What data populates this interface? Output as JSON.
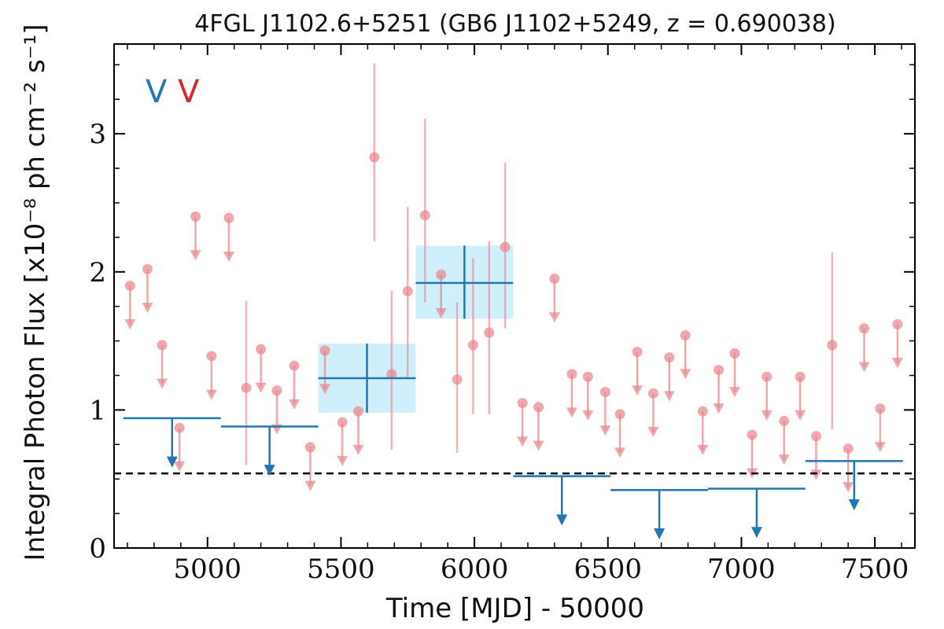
{
  "chart_data": {
    "type": "scatter",
    "title": "4FGL J1102.6+5251 (GB6 J1102+5249, z = 0.690038)",
    "xlabel": "Time [MJD] - 50000",
    "ylabel": "Integral Photon Flux [x10⁻⁸ ph cm⁻² s⁻¹]",
    "xlim": [
      4650,
      7650
    ],
    "ylim": [
      0,
      3.65
    ],
    "xticks": [
      5000,
      5500,
      6000,
      6500,
      7000,
      7500
    ],
    "yticks": [
      0,
      1,
      2,
      3
    ],
    "grid": false,
    "legend": {
      "position": "top-left",
      "entries": [
        {
          "label": "V",
          "color": "#1f77b4"
        },
        {
          "label": "V",
          "color": "#d62728"
        }
      ]
    },
    "reference_line": {
      "y": 0.54,
      "style": "dashed",
      "color": "#000000"
    },
    "series": [
      {
        "color": "#e8838a",
        "points": [
          {
            "x": 4710,
            "y": 1.9,
            "ul": true
          },
          {
            "x": 4775,
            "y": 2.02,
            "ul": true
          },
          {
            "x": 4830,
            "y": 1.47,
            "ul": true
          },
          {
            "x": 4895,
            "y": 0.87,
            "ul": true
          },
          {
            "x": 4955,
            "y": 2.4,
            "ul": true
          },
          {
            "x": 5015,
            "y": 1.39,
            "ul": true
          },
          {
            "x": 5080,
            "y": 2.39,
            "ul": true
          },
          {
            "x": 5145,
            "y": 1.16,
            "ylo": 0.6,
            "yhi": 1.79
          },
          {
            "x": 5200,
            "y": 1.44,
            "ul": true
          },
          {
            "x": 5260,
            "y": 1.14,
            "ul": true
          },
          {
            "x": 5325,
            "y": 1.32,
            "ul": true
          },
          {
            "x": 5385,
            "y": 0.73,
            "ul": true
          },
          {
            "x": 5440,
            "y": 1.43,
            "ul": true
          },
          {
            "x": 5505,
            "y": 0.91,
            "ul": true
          },
          {
            "x": 5565,
            "y": 0.99,
            "ul": true
          },
          {
            "x": 5625,
            "y": 2.83,
            "ylo": 2.22,
            "yhi": 3.51
          },
          {
            "x": 5690,
            "y": 1.26,
            "ylo": 0.71,
            "yhi": 1.86
          },
          {
            "x": 5750,
            "y": 1.86,
            "ylo": 1.24,
            "yhi": 2.47
          },
          {
            "x": 5815,
            "y": 2.41,
            "ylo": 1.78,
            "yhi": 3.11
          },
          {
            "x": 5875,
            "y": 1.98,
            "ul": true
          },
          {
            "x": 5935,
            "y": 1.22,
            "ylo": 0.69,
            "yhi": 1.78
          },
          {
            "x": 5995,
            "y": 1.47,
            "ylo": 0.97,
            "yhi": 2.1
          },
          {
            "x": 6055,
            "y": 1.56,
            "ylo": 0.97,
            "yhi": 2.22
          },
          {
            "x": 6115,
            "y": 2.18,
            "ylo": 1.59,
            "yhi": 2.79
          },
          {
            "x": 6180,
            "y": 1.05,
            "ul": true
          },
          {
            "x": 6240,
            "y": 1.02,
            "ul": true
          },
          {
            "x": 6300,
            "y": 1.95,
            "ul": true
          },
          {
            "x": 6365,
            "y": 1.26,
            "ul": true
          },
          {
            "x": 6425,
            "y": 1.24,
            "ul": true
          },
          {
            "x": 6490,
            "y": 1.13,
            "ul": true
          },
          {
            "x": 6545,
            "y": 0.97,
            "ul": true
          },
          {
            "x": 6610,
            "y": 1.42,
            "ul": true
          },
          {
            "x": 6670,
            "y": 1.12,
            "ul": true
          },
          {
            "x": 6730,
            "y": 1.38,
            "ul": true
          },
          {
            "x": 6790,
            "y": 1.54,
            "ul": true
          },
          {
            "x": 6855,
            "y": 0.99,
            "ul": true
          },
          {
            "x": 6915,
            "y": 1.29,
            "ul": true
          },
          {
            "x": 6975,
            "y": 1.41,
            "ul": true
          },
          {
            "x": 7040,
            "y": 0.82,
            "ul": true
          },
          {
            "x": 7095,
            "y": 1.24,
            "ul": true
          },
          {
            "x": 7160,
            "y": 0.92,
            "ul": true
          },
          {
            "x": 7220,
            "y": 1.24,
            "ul": true
          },
          {
            "x": 7280,
            "y": 0.81,
            "ul": true
          },
          {
            "x": 7340,
            "y": 1.47,
            "ylo": 0.86,
            "yhi": 2.14
          },
          {
            "x": 7400,
            "y": 0.72,
            "ul": true
          },
          {
            "x": 7460,
            "y": 1.59,
            "ul": true
          },
          {
            "x": 7520,
            "y": 1.01,
            "ul": true
          },
          {
            "x": 7585,
            "y": 1.62,
            "ul": true
          }
        ]
      },
      {
        "color": "#1f77b4",
        "bins": [
          {
            "x0": 4685,
            "x1": 5050,
            "y": 0.94,
            "ul": true
          },
          {
            "x0": 5050,
            "x1": 5415,
            "y": 0.88,
            "ul": true
          },
          {
            "x0": 5415,
            "x1": 5780,
            "y": 1.23,
            "ylo": 0.98,
            "yhi": 1.48
          },
          {
            "x0": 5780,
            "x1": 6145,
            "y": 1.92,
            "ylo": 1.66,
            "yhi": 2.19
          },
          {
            "x0": 6145,
            "x1": 6510,
            "y": 0.52,
            "ul": true
          },
          {
            "x0": 6510,
            "x1": 6875,
            "y": 0.42,
            "ul": true
          },
          {
            "x0": 6875,
            "x1": 7240,
            "y": 0.43,
            "ul": true
          },
          {
            "x0": 7240,
            "x1": 7605,
            "y": 0.63,
            "ul": true
          }
        ]
      }
    ]
  }
}
